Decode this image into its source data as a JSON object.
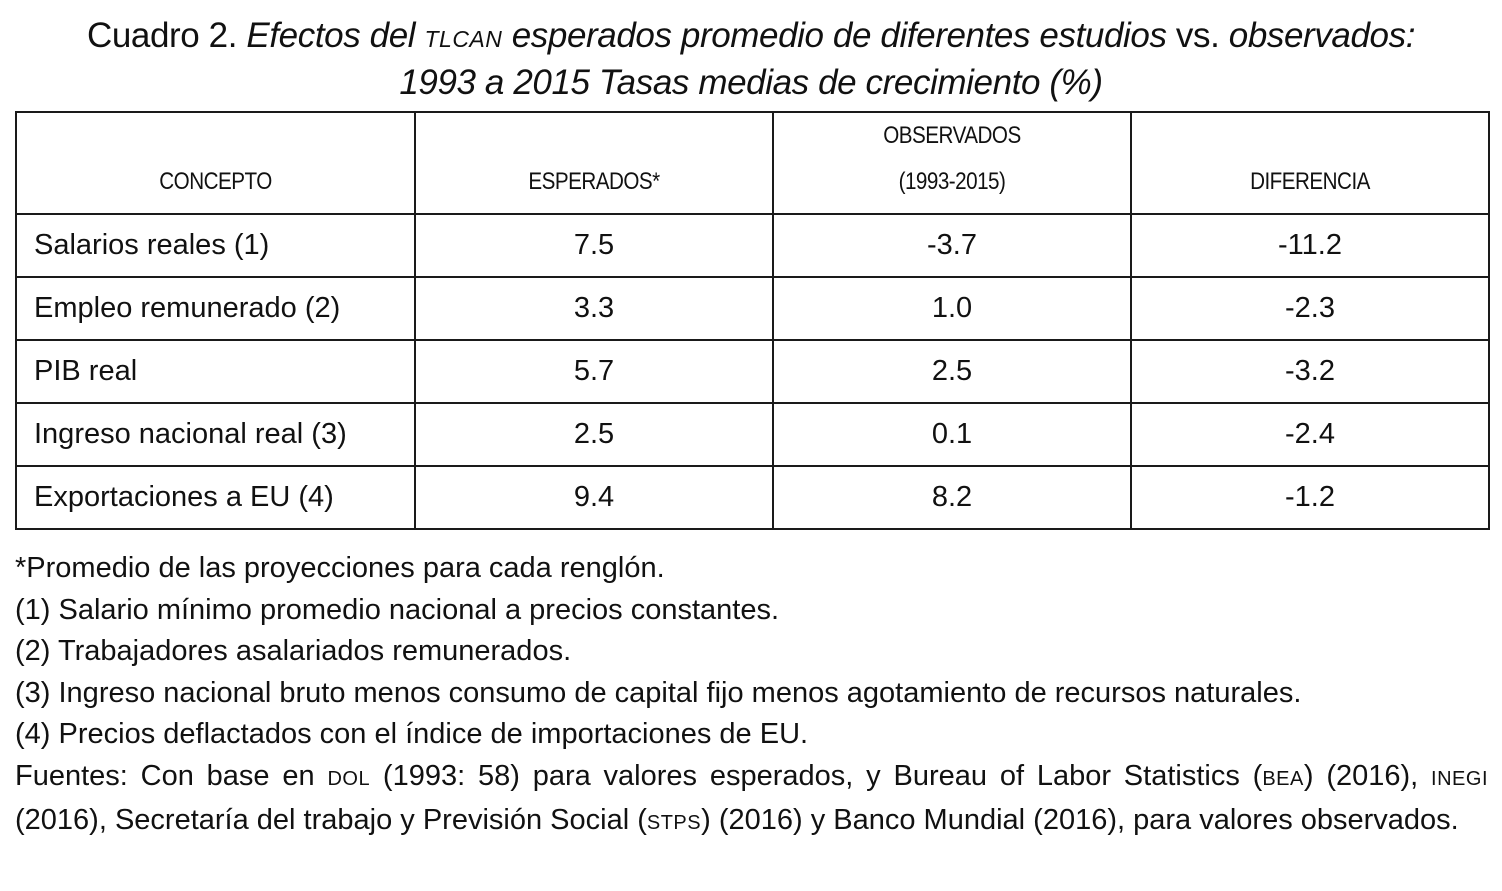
{
  "title": {
    "prefix": "Cuadro 2. ",
    "part1": "Efectos del ",
    "abbr": "TLCAN",
    "part2": " esperados promedio de diferentes estudios ",
    "vs": "vs.",
    "part3": " observados:",
    "line2": "1993 a 2015 Tasas medias de crecimiento (%)"
  },
  "table": {
    "headers": {
      "concepto": "CONCEPTO",
      "esperados": "ESPERADOS*",
      "observados_1": "OBSERVADOS",
      "observados_2": "(1993-2015)",
      "diferencia": "DIFERENCIA"
    },
    "rows": [
      {
        "concepto": "Salarios reales (1)",
        "esperados": "7.5",
        "observados": "-3.7",
        "diferencia": "-11.2"
      },
      {
        "concepto": "Empleo remunerado (2)",
        "esperados": "3.3",
        "observados": "1.0",
        "diferencia": "-2.3"
      },
      {
        "concepto": "PIB real",
        "esperados": "5.7",
        "observados": "2.5",
        "diferencia": "-3.2"
      },
      {
        "concepto": "Ingreso nacional real (3)",
        "esperados": "2.5",
        "observados": "0.1",
        "diferencia": "-2.4"
      },
      {
        "concepto": "Exportaciones a EU (4)",
        "esperados": "9.4",
        "observados": "8.2",
        "diferencia": "-1.2"
      }
    ]
  },
  "notes": {
    "n0": "*Promedio de las proyecciones para cada renglón.",
    "n1": "(1) Salario mínimo promedio nacional a precios constantes.",
    "n2": "(2) Trabajadores asalariados remunerados.",
    "n3": "(3) Ingreso nacional bruto menos consumo de capital fijo menos agotamiento de recursos naturales.",
    "n4": "(4) Precios deflactados con el índice de importaciones de EU.",
    "source": {
      "s1": "Fuentes: Con base en ",
      "dol": "DOL",
      "s2": " (1993: 58) para valores esperados, y Bureau of Labor Statistics (",
      "bea": "BEA",
      "s3": ") (2016), ",
      "inegi": "INEGI",
      "s4": " (2016), Secretaría del trabajo y Previsión Social (",
      "stps": "STPS",
      "s5": ") (2016) y Banco Mundial (2016), para valores observados."
    }
  }
}
